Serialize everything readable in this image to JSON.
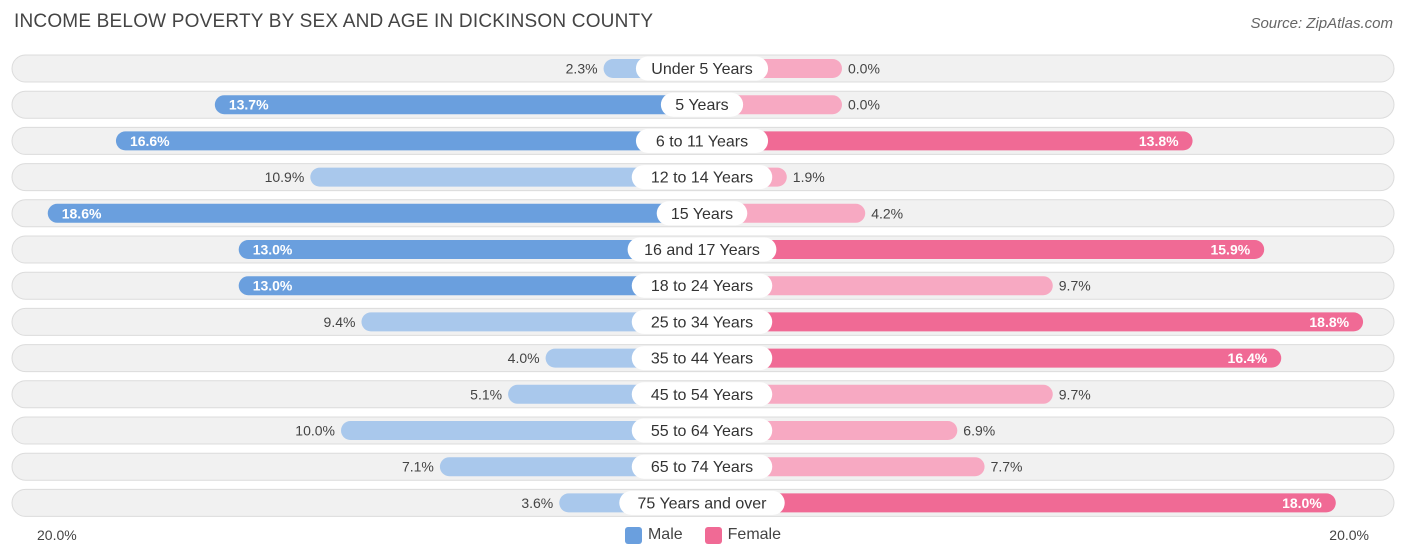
{
  "title": "INCOME BELOW POVERTY BY SEX AND AGE IN DICKINSON COUNTY",
  "source": "Source: ZipAtlas.com",
  "colors": {
    "male": "#6a9fde",
    "male_light": "#a9c8ec",
    "female": "#f06a95",
    "female_light": "#f7a9c2",
    "row_bg": "#f1f1f1",
    "row_border": "#dcdcdc"
  },
  "legend": {
    "male": "Male",
    "female": "Female"
  },
  "axis": {
    "left": "20.0%",
    "right": "20.0%"
  },
  "chart_data": {
    "type": "bar",
    "orientation": "horizontal-diverging",
    "title": "INCOME BELOW POVERTY BY SEX AND AGE IN DICKINSON COUNTY",
    "categories": [
      "Under 5 Years",
      "5 Years",
      "6 to 11 Years",
      "12 to 14 Years",
      "15 Years",
      "16 and 17 Years",
      "18 to 24 Years",
      "25 to 34 Years",
      "35 to 44 Years",
      "45 to 54 Years",
      "55 to 64 Years",
      "65 to 74 Years",
      "75 Years and over"
    ],
    "series": [
      {
        "name": "Male",
        "values": [
          2.3,
          13.7,
          16.6,
          10.9,
          18.6,
          13.0,
          13.0,
          9.4,
          4.0,
          5.1,
          10.0,
          7.1,
          3.6
        ],
        "labels": [
          "2.3%",
          "13.7%",
          "16.6%",
          "10.9%",
          "18.6%",
          "13.0%",
          "13.0%",
          "9.4%",
          "4.0%",
          "5.1%",
          "10.0%",
          "7.1%",
          "3.6%"
        ]
      },
      {
        "name": "Female",
        "values": [
          0.0,
          0.0,
          13.8,
          1.9,
          4.2,
          15.9,
          9.7,
          18.8,
          16.4,
          9.7,
          6.9,
          7.7,
          18.0
        ],
        "labels": [
          "0.0%",
          "0.0%",
          "13.8%",
          "1.9%",
          "4.2%",
          "15.9%",
          "9.7%",
          "18.8%",
          "16.4%",
          "9.7%",
          "6.9%",
          "7.7%",
          "18.0%"
        ]
      }
    ],
    "xlim": [
      -20,
      20
    ],
    "xlabel_left": "20.0%",
    "xlabel_right": "20.0%"
  }
}
